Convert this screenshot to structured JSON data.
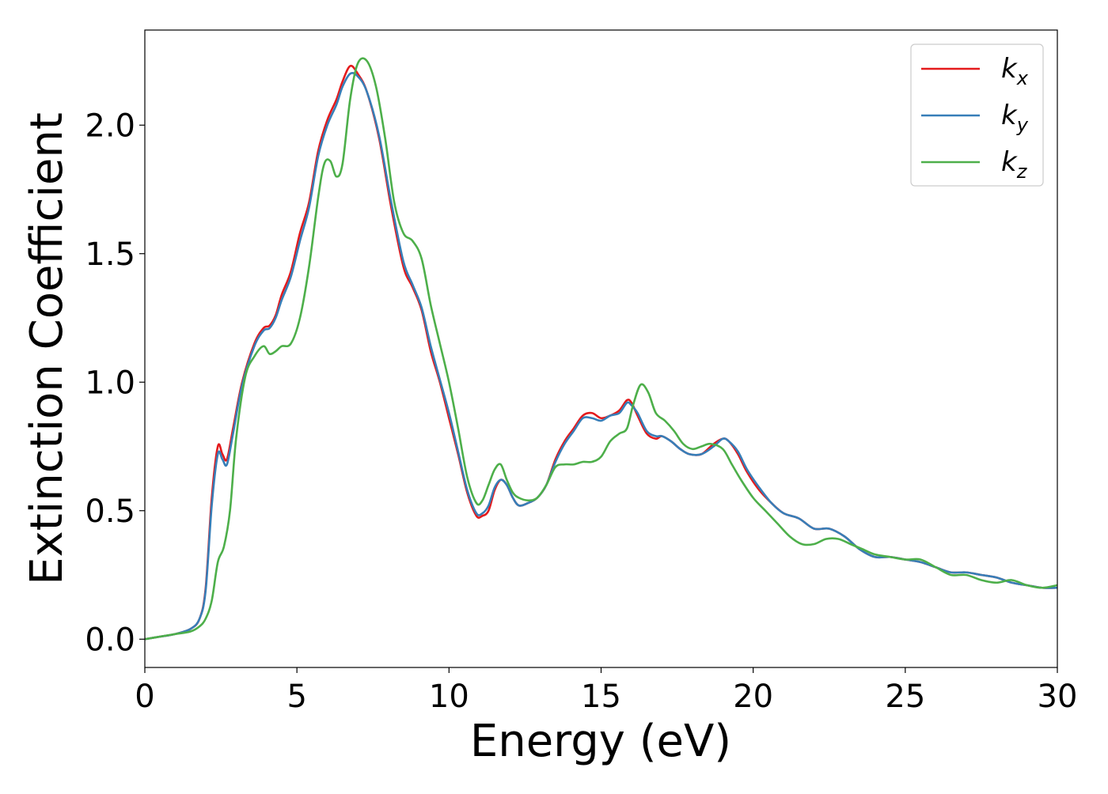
{
  "chart_data": {
    "type": "line",
    "title": "",
    "xlabel": "Energy (eV)",
    "ylabel": "Extinction Coefficient",
    "xlim": [
      0,
      30
    ],
    "ylim": [
      -0.11,
      2.37
    ],
    "xticks": [
      0,
      5,
      10,
      15,
      20,
      25,
      30
    ],
    "xtick_labels": [
      "0",
      "5",
      "10",
      "15",
      "20",
      "25",
      "30"
    ],
    "yticks": [
      0.0,
      0.5,
      1.0,
      1.5,
      2.0
    ],
    "ytick_labels": [
      "0.0",
      "0.5",
      "1.0",
      "1.5",
      "2.0"
    ],
    "grid": false,
    "legend_position": "top-right",
    "series": [
      {
        "name": "kx",
        "label_main": "k",
        "label_sub": "x",
        "color": "#e41a1c",
        "x": [
          0,
          0.5,
          1.0,
          1.5,
          1.8,
          2.0,
          2.2,
          2.4,
          2.55,
          2.7,
          2.9,
          3.2,
          3.6,
          3.9,
          4.1,
          4.3,
          4.5,
          4.8,
          5.1,
          5.4,
          5.7,
          6.0,
          6.3,
          6.5,
          6.75,
          7.0,
          7.3,
          7.7,
          8.1,
          8.5,
          8.8,
          9.1,
          9.4,
          9.7,
          10.0,
          10.3,
          10.6,
          10.9,
          11.1,
          11.3,
          11.5,
          11.7,
          11.9,
          12.1,
          12.3,
          12.6,
          12.9,
          13.2,
          13.5,
          13.8,
          14.1,
          14.4,
          14.7,
          15.0,
          15.3,
          15.6,
          15.85,
          16.0,
          16.2,
          16.5,
          16.8,
          17.0,
          17.3,
          17.6,
          17.9,
          18.3,
          18.7,
          19.0,
          19.2,
          19.5,
          19.8,
          20.2,
          20.6,
          21.0,
          21.5,
          22.0,
          22.5,
          23.0,
          23.5,
          24.0,
          24.5,
          25.0,
          25.5,
          26.0,
          26.5,
          27.0,
          27.5,
          28.0,
          28.5,
          29.0,
          29.5,
          30.0
        ],
        "y": [
          0.0,
          0.01,
          0.02,
          0.04,
          0.08,
          0.2,
          0.55,
          0.75,
          0.72,
          0.7,
          0.82,
          1.0,
          1.15,
          1.21,
          1.22,
          1.26,
          1.34,
          1.43,
          1.58,
          1.7,
          1.9,
          2.02,
          2.1,
          2.17,
          2.23,
          2.2,
          2.13,
          1.95,
          1.68,
          1.45,
          1.37,
          1.28,
          1.12,
          1.0,
          0.86,
          0.72,
          0.57,
          0.48,
          0.48,
          0.5,
          0.58,
          0.62,
          0.6,
          0.55,
          0.52,
          0.53,
          0.55,
          0.6,
          0.7,
          0.77,
          0.82,
          0.87,
          0.88,
          0.86,
          0.87,
          0.89,
          0.93,
          0.92,
          0.87,
          0.8,
          0.78,
          0.79,
          0.77,
          0.74,
          0.72,
          0.72,
          0.76,
          0.78,
          0.77,
          0.72,
          0.65,
          0.58,
          0.53,
          0.49,
          0.47,
          0.43,
          0.43,
          0.4,
          0.35,
          0.32,
          0.32,
          0.31,
          0.3,
          0.28,
          0.26,
          0.26,
          0.25,
          0.24,
          0.22,
          0.21,
          0.2,
          0.2
        ]
      },
      {
        "name": "ky",
        "label_main": "k",
        "label_sub": "y",
        "color": "#377eb8",
        "x": [
          0,
          0.5,
          1.0,
          1.5,
          1.8,
          2.0,
          2.2,
          2.4,
          2.55,
          2.7,
          2.9,
          3.2,
          3.6,
          3.9,
          4.1,
          4.3,
          4.5,
          4.8,
          5.1,
          5.4,
          5.7,
          6.0,
          6.3,
          6.5,
          6.75,
          7.0,
          7.3,
          7.7,
          8.1,
          8.5,
          8.8,
          9.1,
          9.4,
          9.7,
          10.0,
          10.3,
          10.6,
          10.9,
          11.1,
          11.3,
          11.5,
          11.7,
          11.9,
          12.1,
          12.3,
          12.6,
          12.9,
          13.2,
          13.5,
          13.8,
          14.1,
          14.4,
          14.7,
          15.0,
          15.3,
          15.6,
          15.85,
          16.0,
          16.2,
          16.5,
          16.8,
          17.0,
          17.3,
          17.6,
          17.9,
          18.3,
          18.7,
          19.0,
          19.2,
          19.5,
          19.8,
          20.2,
          20.6,
          21.0,
          21.5,
          22.0,
          22.5,
          23.0,
          23.5,
          24.0,
          24.5,
          25.0,
          25.5,
          26.0,
          26.5,
          27.0,
          27.5,
          28.0,
          28.5,
          29.0,
          29.5,
          30.0
        ],
        "y": [
          0.0,
          0.01,
          0.02,
          0.04,
          0.08,
          0.19,
          0.52,
          0.72,
          0.7,
          0.68,
          0.8,
          0.99,
          1.14,
          1.2,
          1.21,
          1.25,
          1.32,
          1.41,
          1.55,
          1.68,
          1.88,
          2.0,
          2.08,
          2.15,
          2.2,
          2.19,
          2.13,
          1.96,
          1.7,
          1.47,
          1.38,
          1.29,
          1.14,
          1.01,
          0.88,
          0.73,
          0.58,
          0.49,
          0.49,
          0.52,
          0.59,
          0.62,
          0.6,
          0.55,
          0.52,
          0.53,
          0.55,
          0.6,
          0.69,
          0.76,
          0.81,
          0.86,
          0.86,
          0.85,
          0.87,
          0.88,
          0.92,
          0.91,
          0.88,
          0.81,
          0.79,
          0.79,
          0.77,
          0.74,
          0.72,
          0.72,
          0.75,
          0.78,
          0.77,
          0.73,
          0.66,
          0.59,
          0.53,
          0.49,
          0.47,
          0.43,
          0.43,
          0.4,
          0.35,
          0.32,
          0.32,
          0.31,
          0.3,
          0.28,
          0.26,
          0.26,
          0.25,
          0.24,
          0.22,
          0.21,
          0.2,
          0.2
        ]
      },
      {
        "name": "kz",
        "label_main": "k",
        "label_sub": "z",
        "color": "#4daf4a",
        "x": [
          0,
          0.5,
          1.0,
          1.5,
          1.8,
          2.0,
          2.2,
          2.4,
          2.6,
          2.8,
          3.0,
          3.3,
          3.6,
          3.9,
          4.1,
          4.3,
          4.5,
          4.8,
          5.1,
          5.4,
          5.7,
          5.9,
          6.1,
          6.3,
          6.5,
          6.75,
          7.0,
          7.3,
          7.6,
          7.9,
          8.2,
          8.5,
          8.8,
          9.1,
          9.4,
          9.7,
          10.0,
          10.3,
          10.6,
          10.9,
          11.1,
          11.3,
          11.5,
          11.7,
          11.9,
          12.1,
          12.3,
          12.6,
          12.9,
          13.2,
          13.5,
          13.8,
          14.1,
          14.4,
          14.7,
          15.0,
          15.3,
          15.6,
          15.85,
          16.05,
          16.3,
          16.55,
          16.8,
          17.1,
          17.4,
          17.7,
          18.0,
          18.3,
          18.6,
          19.0,
          19.3,
          19.6,
          20.0,
          20.4,
          20.8,
          21.2,
          21.6,
          22.0,
          22.4,
          22.8,
          23.2,
          23.6,
          24.0,
          24.5,
          25.0,
          25.5,
          26.0,
          26.5,
          27.0,
          27.5,
          28.0,
          28.5,
          29.0,
          29.5,
          30.0
        ],
        "y": [
          0.0,
          0.01,
          0.02,
          0.03,
          0.05,
          0.08,
          0.15,
          0.3,
          0.36,
          0.5,
          0.78,
          1.02,
          1.1,
          1.14,
          1.11,
          1.12,
          1.14,
          1.15,
          1.25,
          1.45,
          1.72,
          1.85,
          1.86,
          1.8,
          1.85,
          2.1,
          2.24,
          2.25,
          2.15,
          1.95,
          1.7,
          1.58,
          1.55,
          1.48,
          1.3,
          1.15,
          1.0,
          0.82,
          0.63,
          0.53,
          0.54,
          0.6,
          0.66,
          0.68,
          0.62,
          0.57,
          0.55,
          0.54,
          0.55,
          0.6,
          0.67,
          0.68,
          0.68,
          0.69,
          0.69,
          0.71,
          0.77,
          0.8,
          0.82,
          0.91,
          0.99,
          0.96,
          0.88,
          0.85,
          0.81,
          0.76,
          0.74,
          0.75,
          0.76,
          0.74,
          0.68,
          0.62,
          0.55,
          0.5,
          0.45,
          0.4,
          0.37,
          0.37,
          0.39,
          0.39,
          0.37,
          0.35,
          0.33,
          0.32,
          0.31,
          0.31,
          0.28,
          0.25,
          0.25,
          0.23,
          0.22,
          0.23,
          0.21,
          0.2,
          0.21
        ]
      }
    ]
  }
}
